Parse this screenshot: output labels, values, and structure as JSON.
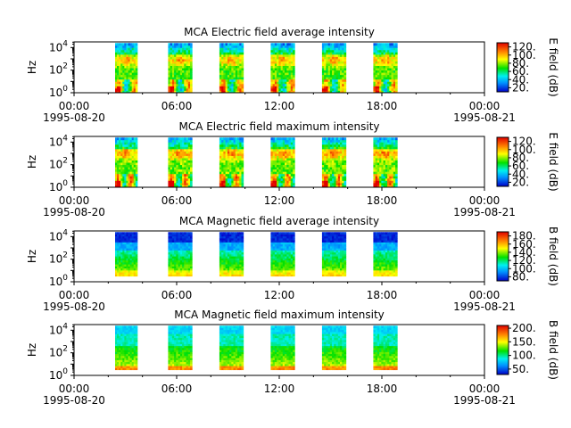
{
  "figure": {
    "time_ticks": [
      {
        "time": "00:00",
        "date": "1995-08-20"
      },
      {
        "time": "06:00",
        "date": ""
      },
      {
        "time": "12:00",
        "date": ""
      },
      {
        "time": "18:00",
        "date": ""
      },
      {
        "time": "00:00",
        "date": "1995-08-21"
      }
    ],
    "x_range_hours": [
      0,
      24
    ],
    "y_label": "Hz",
    "y_ticks": [
      "10^0",
      "10^2",
      "10^4"
    ],
    "y_range_log10": [
      0,
      4.5
    ]
  },
  "chart_data": [
    {
      "type": "heatmap",
      "title": "MCA  Electric field average intensity",
      "colorbar_label": "E field (dB)",
      "colorbar_ticks": [
        "20.",
        "40.",
        "60.",
        "80.",
        "100.",
        "120."
      ],
      "clim": [
        10,
        130
      ],
      "palette": "rainbow",
      "passes_hours": [
        [
          2.4,
          3.7
        ],
        [
          5.5,
          6.9
        ],
        [
          8.5,
          9.9
        ],
        [
          11.5,
          12.9
        ],
        [
          14.5,
          15.9
        ],
        [
          17.5,
          18.9
        ]
      ],
      "freq_range_log10": [
        0,
        4.4
      ],
      "profile": "electric-average"
    },
    {
      "type": "heatmap",
      "title": "MCA  Electric field maximum intensity",
      "colorbar_label": "E field (dB)",
      "colorbar_ticks": [
        "20.",
        "40.",
        "60.",
        "80.",
        "100.",
        "120."
      ],
      "clim": [
        10,
        130
      ],
      "palette": "rainbow",
      "passes_hours": [
        [
          2.4,
          3.7
        ],
        [
          5.5,
          6.9
        ],
        [
          8.5,
          9.9
        ],
        [
          11.5,
          12.9
        ],
        [
          14.5,
          15.9
        ],
        [
          17.5,
          18.9
        ]
      ],
      "freq_range_log10": [
        0,
        4.4
      ],
      "profile": "electric-maximum"
    },
    {
      "type": "heatmap",
      "title": "MCA  Magnetic field average intensity",
      "colorbar_label": "B field (dB)",
      "colorbar_ticks": [
        "80.",
        "100.",
        "120.",
        "140.",
        "160.",
        "180."
      ],
      "clim": [
        70,
        190
      ],
      "palette": "rainbow",
      "passes_hours": [
        [
          2.4,
          3.7
        ],
        [
          5.5,
          6.9
        ],
        [
          8.5,
          9.9
        ],
        [
          11.5,
          12.9
        ],
        [
          14.5,
          15.9
        ],
        [
          17.5,
          18.9
        ]
      ],
      "freq_range_log10": [
        0.5,
        4.4
      ],
      "profile": "magnetic-average"
    },
    {
      "type": "heatmap",
      "title": "MCA  Magnetic field maximum intensity",
      "colorbar_label": "B field (dB)",
      "colorbar_ticks": [
        "50.",
        "100.",
        "150.",
        "200."
      ],
      "clim": [
        30,
        210
      ],
      "palette": "rainbow",
      "passes_hours": [
        [
          2.4,
          3.7
        ],
        [
          5.5,
          6.9
        ],
        [
          8.5,
          9.9
        ],
        [
          11.5,
          12.9
        ],
        [
          14.5,
          15.9
        ],
        [
          17.5,
          18.9
        ]
      ],
      "freq_range_log10": [
        0.5,
        4.4
      ],
      "profile": "magnetic-maximum"
    }
  ]
}
